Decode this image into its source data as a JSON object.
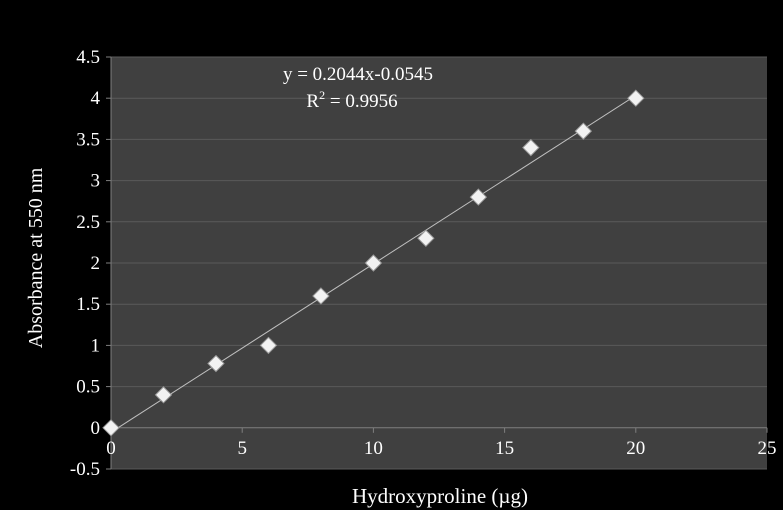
{
  "chart_data": {
    "type": "scatter",
    "xlabel": "Hydroxyproline (µg)",
    "ylabel": "Absorbance at 550 nm",
    "xlim": [
      0,
      25
    ],
    "ylim": [
      -0.5,
      4.5
    ],
    "x_ticks": [
      "0",
      "5",
      "10",
      "15",
      "20",
      "25"
    ],
    "y_ticks": [
      "-0.5",
      "0",
      "0.5",
      "1",
      "1.5",
      "2",
      "2.5",
      "3",
      "3.5",
      "4",
      "4.5"
    ],
    "grid": true,
    "legend": "none",
    "series": [
      {
        "x": [
          0,
          2,
          4,
          6,
          8,
          10,
          12,
          14,
          16,
          18,
          20
        ],
        "y": [
          0,
          0.4,
          0.78,
          1.0,
          1.6,
          2.0,
          2.3,
          2.8,
          3.4,
          3.6,
          4.0
        ]
      }
    ],
    "trendline": {
      "slope": 0.2044,
      "intercept": -0.0545,
      "x_range": [
        0,
        20
      ],
      "equation": "y  = 0.2044x-0.0545",
      "r2_prefix": "R",
      "r2_sup": "2",
      "r2_value": " = 0.9956"
    },
    "colors": {
      "background": "#000000",
      "plot_area": "#404040",
      "grid": "#5a5a5a",
      "axis": "#7f7f7f",
      "marker": "#f2f2f2",
      "trendline": "#bfbfbf",
      "text": "#ffffff"
    }
  }
}
